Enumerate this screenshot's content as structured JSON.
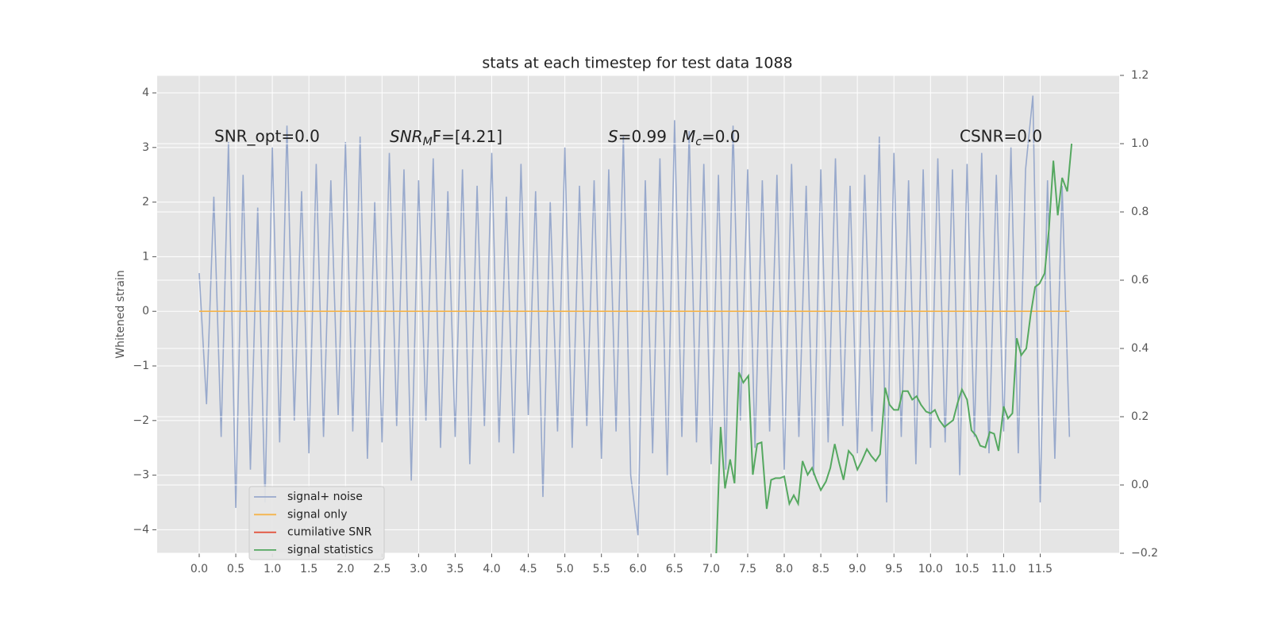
{
  "chart_data": {
    "type": "line",
    "title": "stats at each timestep for test data 1088",
    "ylabel": "Whitened strain",
    "annotations": [
      "SNR_opt=0.0",
      {
        "text": "SNR",
        "sub": "M",
        "rest": "F=[4.21]"
      },
      {
        "text": "S",
        "rest": "=0.99"
      },
      {
        "text": "M",
        "sub": "c",
        "rest": "=0.0"
      },
      "CSNR=0.0"
    ],
    "x": [
      0,
      0.1,
      0.2,
      0.3,
      0.4,
      0.5,
      0.6,
      0.7,
      0.8,
      0.9,
      1,
      1.1,
      1.2,
      1.3,
      1.4,
      1.5,
      1.6,
      1.7,
      1.8,
      1.9,
      2,
      2.1,
      2.2,
      2.3,
      2.4,
      2.5,
      2.6,
      2.7,
      2.8,
      2.9,
      3,
      3.1,
      3.2,
      3.3,
      3.4,
      3.5,
      3.6,
      3.7,
      3.8,
      3.9,
      4,
      4.1,
      4.2,
      4.3,
      4.4,
      4.5,
      4.6,
      4.7,
      4.8,
      4.9,
      5,
      5.1,
      5.2,
      5.3,
      5.4,
      5.5,
      5.6,
      5.7,
      5.8,
      5.9,
      6,
      6.1,
      6.2,
      6.3,
      6.4,
      6.5,
      6.6,
      6.7,
      6.8,
      6.9,
      7,
      7.1,
      7.2,
      7.3,
      7.4,
      7.5,
      7.6,
      7.7,
      7.8,
      7.9,
      8,
      8.1,
      8.2,
      8.3,
      8.4,
      8.5,
      8.6,
      8.7,
      8.8,
      8.9,
      9,
      9.1,
      9.2,
      9.3,
      9.4,
      9.5,
      9.6,
      9.7,
      9.8,
      9.9,
      10,
      10.1,
      10.2,
      10.3,
      10.4,
      10.5,
      10.6,
      10.7,
      10.8,
      10.9,
      11,
      11.1,
      11.2,
      11.3,
      11.4,
      11.5,
      11.6,
      11.7,
      11.8,
      11.9
    ],
    "series": [
      {
        "name": "signal+ noise",
        "color": "#98a9cc",
        "values": [
          0.7,
          -1.7,
          2.1,
          -2.3,
          3.1,
          -3.6,
          2.5,
          -2.9,
          1.9,
          -3.5,
          3.0,
          -2.4,
          3.4,
          -2.0,
          2.2,
          -2.6,
          2.7,
          -2.3,
          2.4,
          -1.9,
          3.1,
          -2.2,
          3.2,
          -2.7,
          2.0,
          -2.4,
          2.9,
          -2.1,
          2.6,
          -3.1,
          2.4,
          -2.0,
          2.8,
          -2.5,
          2.2,
          -2.3,
          2.6,
          -2.8,
          2.3,
          -2.1,
          2.9,
          -2.4,
          2.1,
          -2.6,
          2.7,
          -1.9,
          2.2,
          -3.4,
          2.0,
          -2.2,
          3.0,
          -2.5,
          2.3,
          -2.1,
          2.4,
          -2.7,
          2.6,
          -2.2,
          3.2,
          -3.0,
          -4.1,
          2.4,
          -2.6,
          2.8,
          -3.0,
          3.5,
          -2.3,
          3.3,
          -2.4,
          2.7,
          -2.8,
          2.5,
          -2.9,
          3.4,
          -2.0,
          2.6,
          -2.5,
          2.4,
          -2.2,
          2.5,
          -2.9,
          2.7,
          -2.3,
          2.3,
          -3.0,
          2.6,
          -2.4,
          2.8,
          -2.1,
          2.3,
          -2.6,
          2.5,
          -2.2,
          3.2,
          -3.5,
          2.9,
          -2.3,
          2.4,
          -2.8,
          2.6,
          -2.5,
          2.8,
          -2.4,
          2.6,
          -3.0,
          2.7,
          -2.3,
          2.9,
          -2.6,
          2.5,
          -2.2,
          3.0,
          -2.6,
          2.6,
          3.95,
          -3.5,
          2.4,
          -2.7,
          2.3,
          -2.3
        ]
      },
      {
        "name": "signal only",
        "color": "#f5b44a",
        "values": [
          0,
          0,
          0,
          0,
          0,
          0,
          0,
          0,
          0,
          0,
          0,
          0,
          0,
          0,
          0,
          0,
          0,
          0,
          0,
          0,
          0,
          0,
          0,
          0,
          0,
          0,
          0,
          0,
          0,
          0,
          0,
          0,
          0,
          0,
          0,
          0,
          0,
          0,
          0,
          0,
          0,
          0,
          0,
          0,
          0,
          0,
          0,
          0,
          0,
          0,
          0,
          0,
          0,
          0,
          0,
          0,
          0,
          0,
          0,
          0,
          0,
          0,
          0,
          0,
          0,
          0,
          0,
          0,
          0,
          0,
          0,
          0,
          0,
          0,
          0,
          0,
          0,
          0,
          0,
          0,
          0,
          0,
          0,
          0,
          0,
          0,
          0,
          0,
          0,
          0,
          0,
          0,
          0,
          0,
          0,
          0,
          0,
          0,
          0,
          0,
          0,
          0,
          0,
          0,
          0,
          0,
          0,
          0,
          0,
          0,
          0,
          0,
          0,
          0,
          0,
          0,
          0,
          0,
          0,
          0
        ]
      },
      {
        "name": "cumilative SNR",
        "color": "#e24a33"
      },
      {
        "name": "signal statistics",
        "color": "#55a860",
        "axis": "y2",
        "x": [
          7.07,
          7.13,
          7.19,
          7.26,
          7.32,
          7.38,
          7.44,
          7.51,
          7.57,
          7.63,
          7.69,
          7.76,
          7.82,
          7.88,
          7.94,
          8.0,
          8.07,
          8.13,
          8.19,
          8.25,
          8.32,
          8.38,
          8.44,
          8.5,
          8.57,
          8.63,
          8.69,
          8.75,
          8.81,
          8.88,
          8.94,
          9.0,
          9.06,
          9.13,
          9.19,
          9.25,
          9.31,
          9.38,
          9.44,
          9.5,
          9.56,
          9.62,
          9.69,
          9.75,
          9.81,
          9.87,
          9.94,
          10.0,
          10.06,
          10.12,
          10.19,
          10.25,
          10.31,
          10.37,
          10.43,
          10.5,
          10.56,
          10.62,
          10.68,
          10.75,
          10.81,
          10.87,
          10.93,
          11.0,
          11.06,
          11.12,
          11.18,
          11.24,
          11.31,
          11.37,
          11.43,
          11.49,
          11.56,
          11.62,
          11.68,
          11.74,
          11.8,
          11.87,
          11.93
        ],
        "values": [
          -0.2,
          0.17,
          -0.01,
          0.075,
          0.005,
          0.33,
          0.3,
          0.32,
          0.03,
          0.12,
          0.125,
          -0.07,
          0.015,
          0.02,
          0.02,
          0.025,
          -0.055,
          -0.03,
          -0.055,
          0.07,
          0.03,
          0.05,
          0.015,
          -0.015,
          0.01,
          0.05,
          0.12,
          0.065,
          0.015,
          0.1,
          0.085,
          0.045,
          0.07,
          0.105,
          0.085,
          0.07,
          0.09,
          0.285,
          0.235,
          0.22,
          0.22,
          0.275,
          0.275,
          0.25,
          0.26,
          0.235,
          0.215,
          0.21,
          0.22,
          0.19,
          0.17,
          0.18,
          0.19,
          0.24,
          0.28,
          0.25,
          0.16,
          0.145,
          0.115,
          0.11,
          0.155,
          0.15,
          0.1,
          0.23,
          0.195,
          0.21,
          0.43,
          0.38,
          0.4,
          0.5,
          0.58,
          0.59,
          0.62,
          0.75,
          0.95,
          0.79,
          0.9,
          0.86,
          1.0
        ]
      }
    ],
    "xlim": [
      -0.575,
      12.58
    ],
    "xticks": [
      {
        "value": 0,
        "label": "0.0"
      },
      {
        "value": 0.5,
        "label": "0.5"
      },
      {
        "value": 1,
        "label": "1.0"
      },
      {
        "value": 1.5,
        "label": "1.5"
      },
      {
        "value": 2,
        "label": "2.0"
      },
      {
        "value": 2.5,
        "label": "2.5"
      },
      {
        "value": 3,
        "label": "3.0"
      },
      {
        "value": 3.5,
        "label": "3.5"
      },
      {
        "value": 4,
        "label": "4.0"
      },
      {
        "value": 4.5,
        "label": "4.5"
      },
      {
        "value": 5,
        "label": "5.0"
      },
      {
        "value": 5.5,
        "label": "5.5"
      },
      {
        "value": 6,
        "label": "6.0"
      },
      {
        "value": 6.5,
        "label": "6.5"
      },
      {
        "value": 7,
        "label": "7.0"
      },
      {
        "value": 7.5,
        "label": "7.5"
      },
      {
        "value": 8,
        "label": "8.0"
      },
      {
        "value": 8.5,
        "label": "8.5"
      },
      {
        "value": 9,
        "label": "9.0"
      },
      {
        "value": 9.5,
        "label": "9.5"
      },
      {
        "value": 10,
        "label": "10.0"
      },
      {
        "value": 10.5,
        "label": "10.5"
      },
      {
        "value": 11,
        "label": "11.0"
      },
      {
        "value": 11.5,
        "label": "11.5"
      }
    ],
    "ylim": [
      -4.43,
      4.32
    ],
    "yticks": [
      {
        "value": -4,
        "label": "−4"
      },
      {
        "value": -3,
        "label": "−3"
      },
      {
        "value": -2,
        "label": "−2"
      },
      {
        "value": -1,
        "label": "−1"
      },
      0,
      1,
      2,
      3,
      4
    ],
    "y2lim": [
      -0.2,
      1.2
    ],
    "y2ticks": [
      {
        "value": -0.2,
        "label": "−0.2"
      },
      {
        "value": 0,
        "label": "0.0"
      },
      0.2,
      0.4,
      0.6,
      0.8,
      {
        "value": 1,
        "label": "1.0"
      },
      1.2
    ],
    "grid": true,
    "legend": "lower left"
  }
}
